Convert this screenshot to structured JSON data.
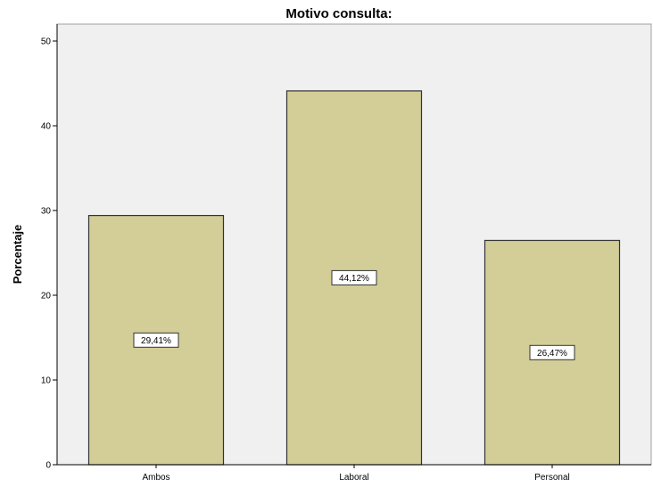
{
  "chart_data": {
    "type": "bar",
    "title": "Motivo consulta:",
    "xlabel": "",
    "ylabel": "Porcentaje",
    "categories": [
      "Ambos",
      "Laboral",
      "Personal"
    ],
    "values": [
      29.41,
      44.12,
      26.47
    ],
    "data_labels": [
      "29,41%",
      "44,12%",
      "26,47%"
    ],
    "yticks": [
      0,
      10,
      20,
      30,
      40,
      50
    ],
    "ylim": [
      0,
      52
    ],
    "grid": false,
    "legend": "none",
    "colors": {
      "plot_background": "#f0f0f0",
      "bar_fill": "#d3ce98",
      "bar_stroke": "#333333",
      "axis": "#000000"
    }
  }
}
